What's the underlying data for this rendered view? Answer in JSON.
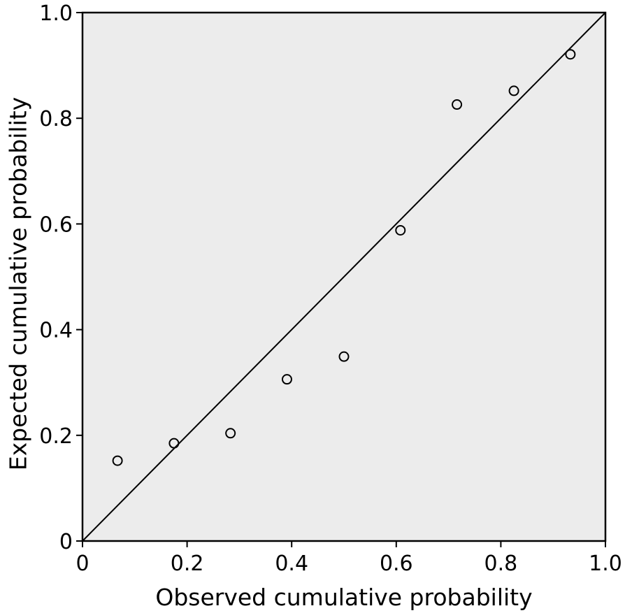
{
  "chart_data": {
    "type": "scatter",
    "title": "",
    "xlabel": "Observed cumulative probability",
    "ylabel": "Expected cumulative probability",
    "xlim": [
      0,
      1
    ],
    "ylim": [
      0,
      1
    ],
    "x_ticks": [
      0,
      0.2,
      0.4,
      0.6,
      0.8,
      1.0
    ],
    "y_ticks": [
      0,
      0.2,
      0.4,
      0.6,
      0.8,
      1.0
    ],
    "x_tick_labels": [
      "0",
      "0.2",
      "0.4",
      "0.6",
      "0.8",
      "1.0"
    ],
    "y_tick_labels": [
      "0",
      "0.2",
      "0.4",
      "0.6",
      "0.8",
      "1.0"
    ],
    "grid": false,
    "legend": "none",
    "reference_line": {
      "from": [
        0,
        0
      ],
      "to": [
        1,
        1
      ]
    },
    "points": [
      {
        "x": 0.067,
        "y": 0.152
      },
      {
        "x": 0.175,
        "y": 0.185
      },
      {
        "x": 0.283,
        "y": 0.204
      },
      {
        "x": 0.391,
        "y": 0.306
      },
      {
        "x": 0.5,
        "y": 0.349
      },
      {
        "x": 0.608,
        "y": 0.588
      },
      {
        "x": 0.716,
        "y": 0.826
      },
      {
        "x": 0.825,
        "y": 0.852
      },
      {
        "x": 0.933,
        "y": 0.921
      }
    ],
    "colors": {
      "plot_background": "#ececec",
      "axis": "#000000",
      "marker": "#000000",
      "line": "#000000"
    }
  }
}
